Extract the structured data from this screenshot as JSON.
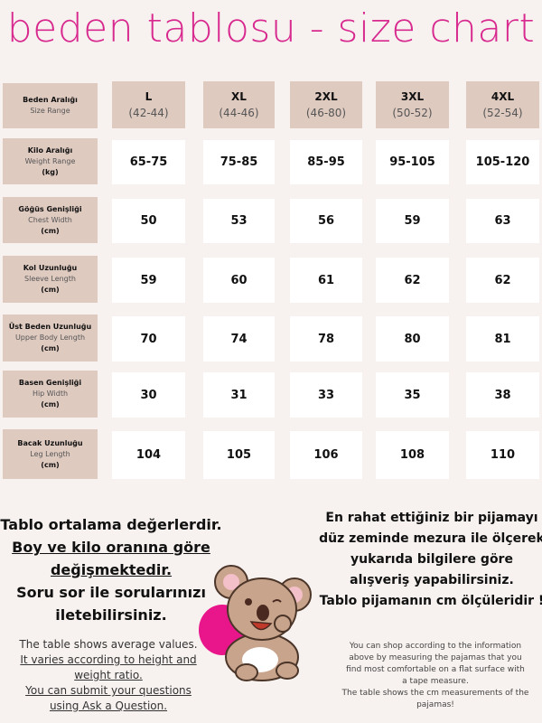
{
  "title": "beden tablosu - size chart",
  "header": {
    "label_tr": "Beden Aralığı",
    "label_en": "Size Range",
    "sizes": [
      {
        "size": "L",
        "range": "(42-44)"
      },
      {
        "size": "XL",
        "range": "(44-46)"
      },
      {
        "size": "2XL",
        "range": "(46-80)"
      },
      {
        "size": "3XL",
        "range": "(50-52)"
      },
      {
        "size": "4XL",
        "range": "(52-54)"
      }
    ]
  },
  "rows": [
    {
      "tr": "Kilo Aralığı",
      "en": "Weight Range",
      "unit": "(kg)",
      "values": [
        "65-75",
        "75-85",
        "85-95",
        "95-105",
        "105-120"
      ]
    },
    {
      "tr": "Göğüs Genişliği",
      "en": "Chest Width",
      "unit": "(cm)",
      "values": [
        "50",
        "53",
        "56",
        "59",
        "63"
      ]
    },
    {
      "tr": "Kol Uzunluğu",
      "en": "Sleeve Length",
      "unit": "(cm)",
      "values": [
        "59",
        "60",
        "61",
        "62",
        "62"
      ]
    },
    {
      "tr": "Üst Beden Uzunluğu",
      "en": "Upper Body Length",
      "unit": "(cm)",
      "values": [
        "70",
        "74",
        "78",
        "80",
        "81"
      ]
    },
    {
      "tr": "Basen Genişliği",
      "en": "Hip Width",
      "unit": "(cm)",
      "values": [
        "30",
        "31",
        "33",
        "35",
        "38"
      ]
    },
    {
      "tr": "Bacak Uzunluğu",
      "en": "Leg Length",
      "unit": "(cm)",
      "values": [
        "104",
        "105",
        "106",
        "108",
        "110"
      ]
    }
  ],
  "left_note": {
    "l1": "Tablo ortalama değerlerdir.",
    "l2": "Boy ve kilo oranına göre",
    "l3": "değişmektedir.",
    "l4": "Soru sor ile sorularınızı",
    "l5": "iletebilirsiniz.",
    "e1": "The table shows average values.",
    "e2": "It varies according to height and",
    "e3": "weight ratio.",
    "e4": "You can submit your questions",
    "e5": "using Ask a Question."
  },
  "right_note": {
    "l1": "En rahat ettiğiniz bir pijamayı",
    "l2": "düz zeminde mezura ile ölçerek",
    "l3": "yukarıda bilgilere göre",
    "l4": "alışveriş yapabilirsiniz.",
    "l5": "Tablo pijamanın cm ölçüleridir !",
    "e1": "You can shop according to the information",
    "e2": "above by measuring the pajamas that you",
    "e3": "find most comfortable on a flat surface with",
    "e4": "a tape measure.",
    "e5": "The table shows the cm measurements of the",
    "e6": "pajamas!"
  },
  "colors": {
    "title": "#d8298f",
    "cell_tan": "#dfcac0",
    "background": "#f7f2ef",
    "pillow": "#e8168a"
  }
}
